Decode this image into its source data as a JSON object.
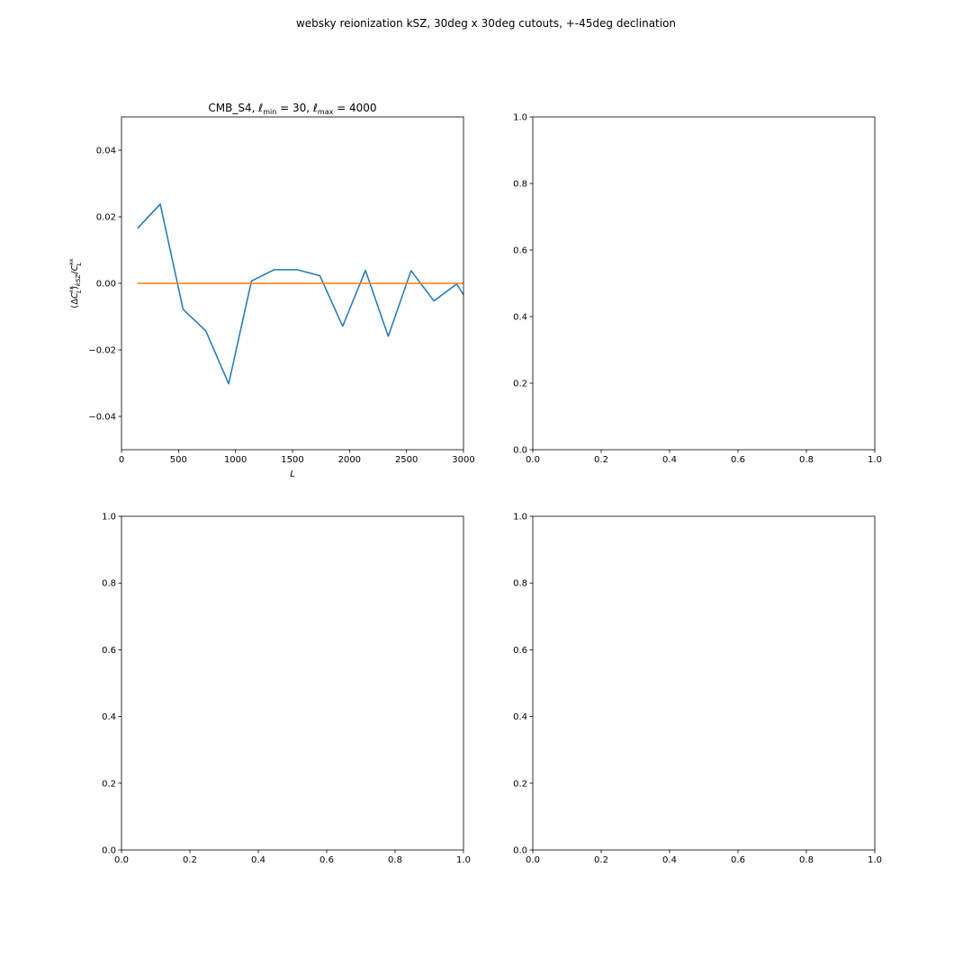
{
  "figure": {
    "suptitle": "websky reionization kSZ, 30deg x 30deg cutouts, +-45deg declination"
  },
  "chart_data": [
    {
      "type": "line",
      "title": "CMB_S4, ℓmin = 30, ℓmax = 4000",
      "title_parts": {
        "prefix": "CMB_S4, ",
        "l1_sub": "min",
        "l1_eq": " = 30, ",
        "l2_sub": "max",
        "l2_eq": " = 4000"
      },
      "xlabel": "L",
      "ylabel": "(ΔC_L^{κκ})_{kSZ}/C_L^{κκ}",
      "xlim": [
        0,
        3000
      ],
      "ylim": [
        -0.05,
        0.05
      ],
      "xticks": [
        0,
        500,
        1000,
        1500,
        2000,
        2500,
        3000
      ],
      "xtick_labels": [
        "0",
        "500",
        "1000",
        "1500",
        "2000",
        "2500",
        "3000"
      ],
      "yticks": [
        -0.04,
        -0.02,
        0.0,
        0.02,
        0.04
      ],
      "ytick_labels": [
        "−0.04",
        "−0.02",
        "0.00",
        "0.02",
        "0.04"
      ],
      "grid": false,
      "series": [
        {
          "color": "#1f77b4",
          "x": [
            140,
            340,
            540,
            740,
            940,
            1140,
            1340,
            1540,
            1740,
            1940,
            2140,
            2340,
            2540,
            2740,
            2940,
            3140
          ],
          "y": [
            0.0165,
            0.0238,
            -0.0078,
            -0.0143,
            -0.0302,
            0.0007,
            0.0041,
            0.0041,
            0.0023,
            -0.0129,
            0.0039,
            -0.0159,
            0.0038,
            -0.0053,
            -0.0002,
            -0.011
          ]
        },
        {
          "color": "#ff7f0e",
          "x": [
            140,
            3140
          ],
          "y": [
            0.0,
            0.0
          ]
        }
      ]
    },
    {
      "type": "line",
      "title": "",
      "xlabel": "",
      "ylabel": "",
      "xlim": [
        0,
        1
      ],
      "ylim": [
        0,
        1
      ],
      "xticks": [
        0,
        0.2,
        0.4,
        0.6,
        0.8,
        1.0
      ],
      "xtick_labels": [
        "0.0",
        "0.2",
        "0.4",
        "0.6",
        "0.8",
        "1.0"
      ],
      "yticks": [
        0,
        0.2,
        0.4,
        0.6,
        0.8,
        1.0
      ],
      "ytick_labels": [
        "0.0",
        "0.2",
        "0.4",
        "0.6",
        "0.8",
        "1.0"
      ],
      "grid": false,
      "series": []
    },
    {
      "type": "line",
      "title": "",
      "xlabel": "",
      "ylabel": "",
      "xlim": [
        0,
        1
      ],
      "ylim": [
        0,
        1
      ],
      "xticks": [
        0,
        0.2,
        0.4,
        0.6,
        0.8,
        1.0
      ],
      "xtick_labels": [
        "0.0",
        "0.2",
        "0.4",
        "0.6",
        "0.8",
        "1.0"
      ],
      "yticks": [
        0,
        0.2,
        0.4,
        0.6,
        0.8,
        1.0
      ],
      "ytick_labels": [
        "0.0",
        "0.2",
        "0.4",
        "0.6",
        "0.8",
        "1.0"
      ],
      "grid": false,
      "series": []
    },
    {
      "type": "line",
      "title": "",
      "xlabel": "",
      "ylabel": "",
      "xlim": [
        0,
        1
      ],
      "ylim": [
        0,
        1
      ],
      "xticks": [
        0,
        0.2,
        0.4,
        0.6,
        0.8,
        1.0
      ],
      "xtick_labels": [
        "0.0",
        "0.2",
        "0.4",
        "0.6",
        "0.8",
        "1.0"
      ],
      "yticks": [
        0,
        0.2,
        0.4,
        0.6,
        0.8,
        1.0
      ],
      "ytick_labels": [
        "0.0",
        "0.2",
        "0.4",
        "0.6",
        "0.8",
        "1.0"
      ],
      "grid": false,
      "series": []
    }
  ]
}
